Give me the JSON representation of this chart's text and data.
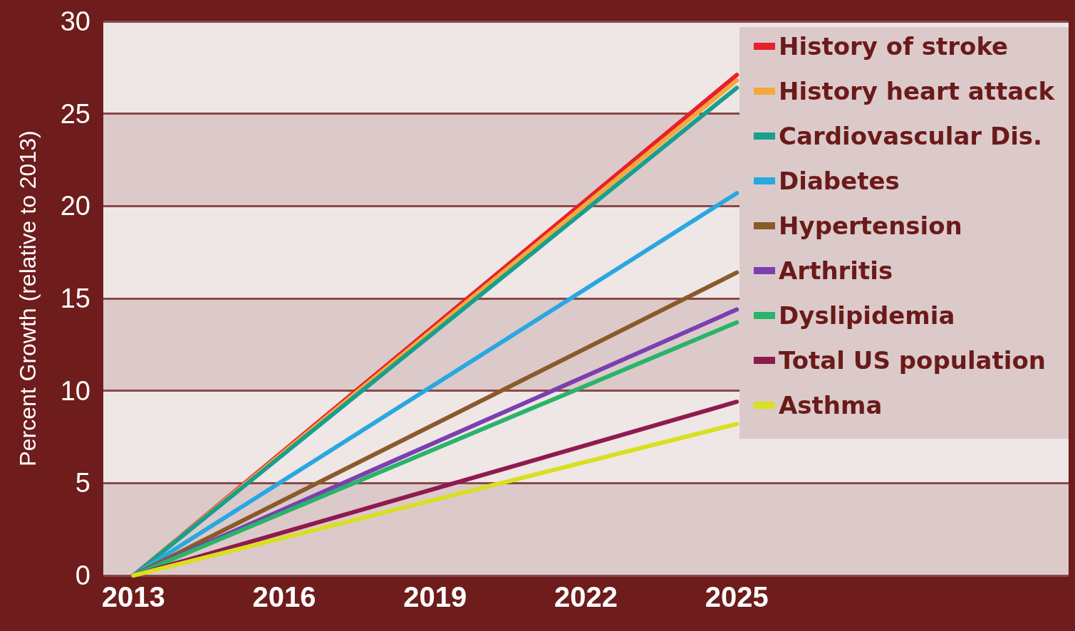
{
  "chart_data": {
    "type": "line",
    "ylabel": "Percent Growth (relative to 2013)",
    "x": [
      2013,
      2025
    ],
    "xlim": [
      2012.4,
      2031.6
    ],
    "xticks": [
      2013,
      2016,
      2019,
      2022,
      2025
    ],
    "ylim": [
      0,
      30
    ],
    "yticks": [
      0,
      5,
      10,
      15,
      20,
      25,
      30
    ],
    "grid": "y",
    "legend": "right",
    "marker": "none",
    "line_style": "solid",
    "series": [
      {
        "name": "History of stroke",
        "color": "#e8202a",
        "values": [
          0,
          27.1
        ]
      },
      {
        "name": "History heart attack",
        "color": "#f4a93a",
        "values": [
          0,
          26.8
        ]
      },
      {
        "name": "Cardiovascular Dis.",
        "color": "#1a9e8e",
        "values": [
          0,
          26.4
        ]
      },
      {
        "name": "Diabetes",
        "color": "#29a8e0",
        "values": [
          0,
          20.7
        ]
      },
      {
        "name": "Hypertension",
        "color": "#8a5a2a",
        "values": [
          0,
          16.4
        ]
      },
      {
        "name": "Arthritis",
        "color": "#7b3fb0",
        "values": [
          0,
          14.4
        ]
      },
      {
        "name": "Dyslipidemia",
        "color": "#2ab36a",
        "values": [
          0,
          13.7
        ]
      },
      {
        "name": "Total US population",
        "color": "#8e1a50",
        "values": [
          0,
          9.4
        ]
      },
      {
        "name": "Asthma",
        "color": "#d8e020",
        "values": [
          0,
          8.2
        ]
      }
    ]
  }
}
